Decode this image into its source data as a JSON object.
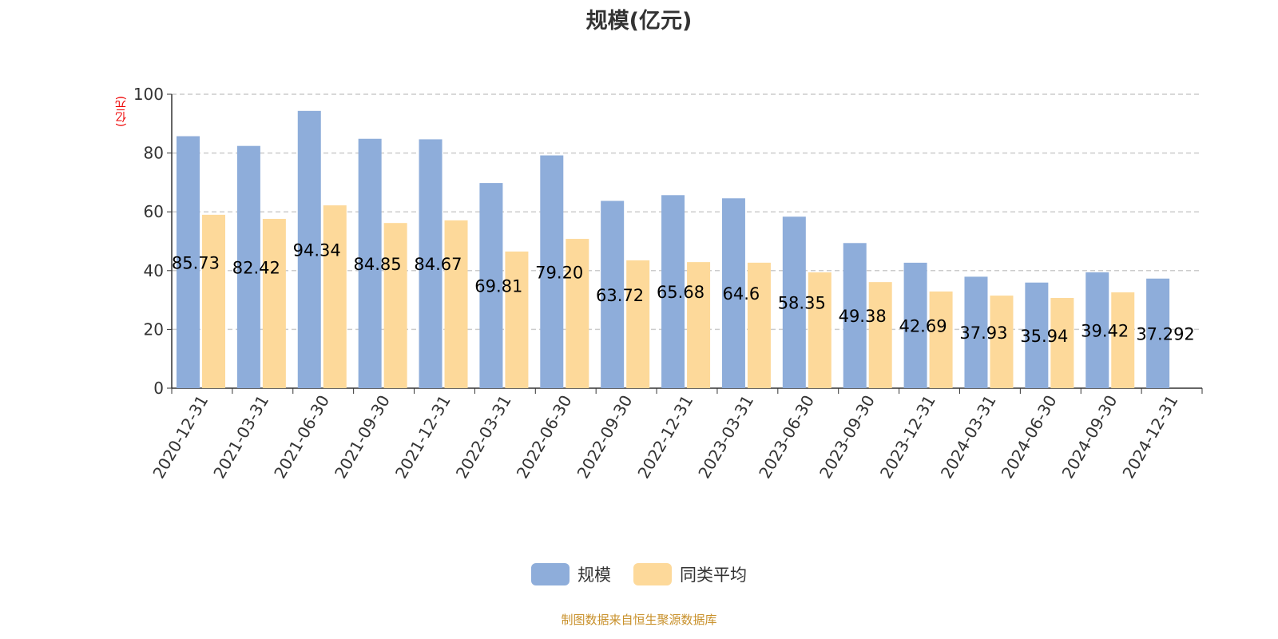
{
  "chart_data": {
    "type": "bar",
    "title": "规模(亿元)",
    "ylabel": "(亿元)",
    "ylim": [
      0,
      100
    ],
    "yticks": [
      0,
      20,
      40,
      60,
      80,
      100
    ],
    "grid": true,
    "legend_position": "bottom",
    "categories": [
      "2020-12-31",
      "2021-03-31",
      "2021-06-30",
      "2021-09-30",
      "2021-12-31",
      "2022-03-31",
      "2022-06-30",
      "2022-09-30",
      "2022-12-31",
      "2023-03-31",
      "2023-06-30",
      "2023-09-30",
      "2023-12-31",
      "2024-03-31",
      "2024-06-30",
      "2024-09-30",
      "2024-12-31"
    ],
    "series": [
      {
        "name": "规模",
        "color": "#8eadda",
        "values": [
          85.73,
          82.42,
          94.34,
          84.85,
          84.67,
          69.81,
          79.2,
          63.72,
          65.68,
          64.6,
          58.35,
          49.38,
          42.69,
          37.93,
          35.94,
          39.42,
          37.292
        ],
        "labels": [
          "85.73",
          "82.42",
          "94.34",
          "84.85",
          "84.67",
          "69.81",
          "79.20",
          "63.72",
          "65.68",
          "64.6",
          "58.35",
          "49.38",
          "42.69",
          "37.93",
          "35.94",
          "39.42",
          "37.292"
        ]
      },
      {
        "name": "同类平均",
        "color": "#fdd99a",
        "values": [
          59.0,
          57.6,
          62.2,
          56.2,
          57.1,
          46.5,
          50.8,
          43.5,
          42.9,
          42.7,
          39.4,
          36.1,
          32.9,
          31.5,
          30.7,
          32.6,
          null
        ]
      }
    ]
  },
  "footer": "制图数据来自恒生聚源数据库"
}
